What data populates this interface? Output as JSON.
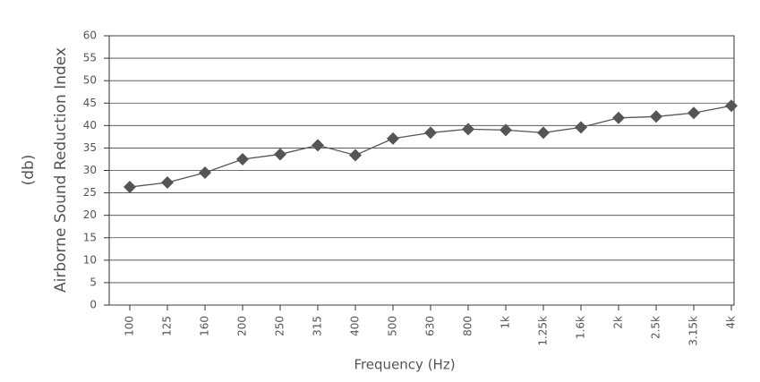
{
  "chart_data": {
    "type": "line",
    "y_label": "Airborne Sound Reduction Index",
    "y_unit": "(db)",
    "x_label": "Frequency (Hz)",
    "categories": [
      "100",
      "125",
      "160",
      "200",
      "250",
      "315",
      "400",
      "500",
      "630",
      "800",
      "1k",
      "1.25k",
      "1.6k",
      "2k",
      "2.5k",
      "3.15k",
      "4k"
    ],
    "series": [
      {
        "color": "#555555",
        "values": [
          26.3,
          27.3,
          29.5,
          32.5,
          33.6,
          35.6,
          33.4,
          37.1,
          38.4,
          39.2,
          39.0,
          38.4,
          39.6,
          41.7,
          42.0,
          42.8,
          44.4
        ]
      }
    ],
    "ylim": [
      0,
      60
    ],
    "yticks": [
      0,
      5,
      10,
      15,
      20,
      25,
      30,
      35,
      40,
      45,
      50,
      55,
      60
    ],
    "grid": true
  }
}
